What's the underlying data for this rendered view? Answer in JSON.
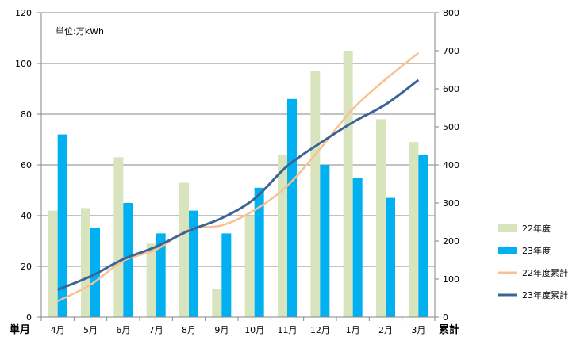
{
  "chart_data": {
    "type": "bar+line",
    "unit_label": "単位:万kWh",
    "left_axis_label": "単月",
    "right_axis_label": "累計",
    "left_ylim": [
      0,
      120
    ],
    "left_ticks": [
      0,
      20,
      40,
      60,
      80,
      100,
      120
    ],
    "right_ylim": [
      0,
      800
    ],
    "right_ticks": [
      0,
      100,
      200,
      300,
      400,
      500,
      600,
      700,
      800
    ],
    "grid": true,
    "legend_position": "right",
    "categories": [
      "4月",
      "5月",
      "6月",
      "7月",
      "8月",
      "9月",
      "10月",
      "11月",
      "12月",
      "1月",
      "2月",
      "3月"
    ],
    "series": [
      {
        "name": "22年度",
        "kind": "bar",
        "axis": "left",
        "color": "#d7e4bd",
        "values": [
          42,
          43,
          63,
          29,
          53,
          11,
          40,
          64,
          97,
          105,
          78,
          69
        ]
      },
      {
        "name": "23年度",
        "kind": "bar",
        "axis": "left",
        "color": "#00b0f0",
        "values": [
          72,
          35,
          45,
          33,
          42,
          33,
          51,
          86,
          60,
          55,
          47,
          64
        ]
      },
      {
        "name": "22年度累計",
        "kind": "line",
        "axis": "right",
        "color": "#fac090",
        "values": [
          42,
          85,
          148,
          177,
          230,
          241,
          281,
          345,
          442,
          547,
          625,
          694
        ]
      },
      {
        "name": "23年度累計",
        "kind": "line",
        "axis": "right",
        "color": "#3c6496",
        "values": [
          72,
          107,
          152,
          185,
          227,
          260,
          311,
          397,
          457,
          512,
          559,
          623
        ]
      }
    ]
  }
}
